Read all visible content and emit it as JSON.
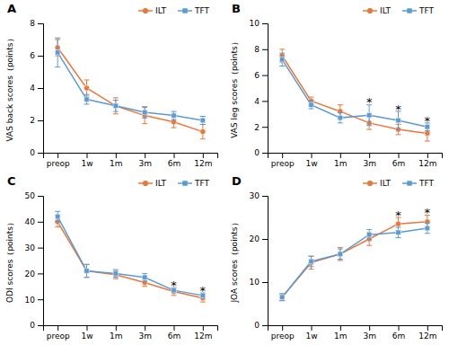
{
  "chart_data": [
    {
      "type": "line",
      "title": "A",
      "ylabel": "VAS back scores（points）",
      "categories": [
        "preop",
        "1w",
        "1m",
        "3m",
        "6m",
        "12m"
      ],
      "ylim": [
        0,
        8
      ],
      "yticks": [
        0,
        2,
        4,
        6,
        8
      ],
      "legend": "upper right",
      "series": [
        {
          "name": "ILT",
          "color": "#E8783C",
          "marker": "circle",
          "values": [
            6.5,
            4.0,
            2.9,
            2.3,
            1.9,
            1.3
          ],
          "errors": [
            0.5,
            0.5,
            0.5,
            0.5,
            0.35,
            0.45
          ]
        },
        {
          "name": "TFT",
          "color": "#5B9BD5",
          "marker": "square",
          "values": [
            6.2,
            3.3,
            2.9,
            2.5,
            2.3,
            2.0
          ],
          "errors": [
            0.9,
            0.3,
            0.35,
            0.35,
            0.25,
            0.25
          ]
        }
      ],
      "annotations": []
    },
    {
      "type": "line",
      "title": "B",
      "ylabel": "VAS leg scores（points）",
      "categories": [
        "preop",
        "1w",
        "1m",
        "3m",
        "6m",
        "12m"
      ],
      "ylim": [
        0,
        10
      ],
      "yticks": [
        0,
        2,
        4,
        6,
        8,
        10
      ],
      "legend": "upper right",
      "series": [
        {
          "name": "ILT",
          "color": "#E8783C",
          "marker": "circle",
          "values": [
            7.5,
            4.0,
            3.2,
            2.3,
            1.8,
            1.5
          ],
          "errors": [
            0.5,
            0.3,
            0.5,
            0.5,
            0.4,
            0.6
          ]
        },
        {
          "name": "TFT",
          "color": "#5B9BD5",
          "marker": "square",
          "values": [
            7.2,
            3.7,
            2.7,
            2.9,
            2.5,
            2.0
          ],
          "errors": [
            0.5,
            0.3,
            0.4,
            0.8,
            0.7,
            0.3
          ]
        }
      ],
      "annotations": [
        {
          "text": "*",
          "x": "3m"
        },
        {
          "text": "*",
          "x": "6m"
        },
        {
          "text": "*",
          "x": "12m"
        }
      ]
    },
    {
      "type": "line",
      "title": "C",
      "ylabel": "ODI scores（points）",
      "categories": [
        "preop",
        "1w",
        "1m",
        "3m",
        "6m",
        "12m"
      ],
      "ylim": [
        0,
        50
      ],
      "yticks": [
        0,
        10,
        20,
        30,
        40,
        50
      ],
      "legend": "upper right",
      "series": [
        {
          "name": "ILT",
          "color": "#E8783C",
          "marker": "circle",
          "values": [
            40.0,
            21.0,
            19.5,
            16.5,
            13.0,
            10.5
          ],
          "errors": [
            2.0,
            2.5,
            1.5,
            1.5,
            1.5,
            1.5
          ]
        },
        {
          "name": "TFT",
          "color": "#5B9BD5",
          "marker": "square",
          "values": [
            42.0,
            21.0,
            20.0,
            18.5,
            13.5,
            11.5
          ],
          "errors": [
            2.0,
            2.5,
            1.5,
            1.5,
            1.0,
            1.0
          ]
        }
      ],
      "annotations": [
        {
          "text": "*",
          "x": "6m"
        },
        {
          "text": "*",
          "x": "12m"
        }
      ]
    },
    {
      "type": "line",
      "title": "D",
      "ylabel": "JOA scores（points）",
      "categories": [
        "preop",
        "1w",
        "1m",
        "3m",
        "6m",
        "12m"
      ],
      "ylim": [
        0,
        30
      ],
      "yticks": [
        0,
        10,
        20,
        30
      ],
      "legend": "upper right",
      "series": [
        {
          "name": "ILT",
          "color": "#E8783C",
          "marker": "circle",
          "values": [
            6.5,
            14.5,
            16.5,
            20.0,
            23.5,
            24.0
          ],
          "errors": [
            0.8,
            1.5,
            1.5,
            1.5,
            1.5,
            1.5
          ]
        },
        {
          "name": "TFT",
          "color": "#5B9BD5",
          "marker": "square",
          "values": [
            6.5,
            14.8,
            16.5,
            21.0,
            21.5,
            22.5
          ],
          "errors": [
            0.8,
            1.2,
            1.2,
            1.2,
            1.2,
            1.2
          ]
        }
      ],
      "annotations": [
        {
          "text": "*",
          "x": "6m"
        },
        {
          "text": "*",
          "x": "12m"
        }
      ]
    }
  ]
}
